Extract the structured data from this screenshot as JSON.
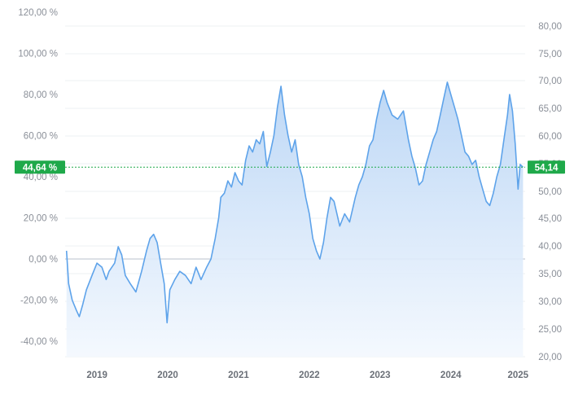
{
  "chart_data": {
    "type": "area",
    "title": "",
    "xlabel": "",
    "ylabel": "",
    "colors": {
      "line": "#5ea3ea",
      "fill_top": "#b9d5f5",
      "fill_bottom": "#f3f8fe",
      "badge": "#1fa94a",
      "zero_line": "#b8c2cc",
      "marker_line": "#1fa94a"
    },
    "grid": true,
    "left_axis": {
      "unit": "%",
      "ylim": [
        -47.5,
        120
      ],
      "ticks": [
        "120,00 %",
        "100,00 %",
        "80,00 %",
        "60,00 %",
        "40,00 %",
        "20,00 %",
        "0,00 %",
        "-20,00 %",
        "-40,00 %"
      ],
      "tick_values": [
        120,
        100,
        80,
        60,
        40,
        20,
        0,
        -20,
        -40
      ]
    },
    "right_axis": {
      "ylim": [
        19,
        82
      ],
      "ticks": [
        "80,00",
        "75,00",
        "70,00",
        "65,00",
        "60,00",
        "55,00",
        "50,00",
        "45,00",
        "40,00",
        "35,00",
        "30,00",
        "25,00",
        "20,00"
      ],
      "tick_values": [
        80,
        75,
        70,
        65,
        60,
        55,
        50,
        45,
        40,
        35,
        30,
        25,
        20
      ]
    },
    "x_axis": {
      "xlim": [
        2018.8,
        2025.3
      ],
      "ticks": [
        "2019",
        "2020",
        "2021",
        "2022",
        "2023",
        "2024",
        "2025"
      ],
      "tick_values": [
        2019.25,
        2020.25,
        2021.25,
        2022.25,
        2023.25,
        2024.25,
        2025.2
      ]
    },
    "current": {
      "percent_label": "44,64 %",
      "price_label": "54,14",
      "percent": 44.64,
      "price": 54.14
    },
    "series": [
      {
        "points": [
          [
            2018.82,
            4
          ],
          [
            2018.85,
            -12
          ],
          [
            2018.9,
            -20
          ],
          [
            2018.96,
            -25
          ],
          [
            2019.0,
            -28
          ],
          [
            2019.05,
            -22
          ],
          [
            2019.1,
            -15
          ],
          [
            2019.18,
            -8
          ],
          [
            2019.25,
            -2
          ],
          [
            2019.32,
            -4
          ],
          [
            2019.38,
            -10
          ],
          [
            2019.42,
            -6
          ],
          [
            2019.5,
            -2
          ],
          [
            2019.55,
            6
          ],
          [
            2019.6,
            2
          ],
          [
            2019.65,
            -8
          ],
          [
            2019.72,
            -12
          ],
          [
            2019.8,
            -16
          ],
          [
            2019.88,
            -6
          ],
          [
            2019.95,
            4
          ],
          [
            2020.0,
            10
          ],
          [
            2020.05,
            12
          ],
          [
            2020.1,
            8
          ],
          [
            2020.15,
            -2
          ],
          [
            2020.2,
            -12
          ],
          [
            2020.24,
            -31
          ],
          [
            2020.28,
            -15
          ],
          [
            2020.35,
            -10
          ],
          [
            2020.42,
            -6
          ],
          [
            2020.5,
            -8
          ],
          [
            2020.58,
            -12
          ],
          [
            2020.65,
            -4
          ],
          [
            2020.72,
            -10
          ],
          [
            2020.8,
            -4
          ],
          [
            2020.86,
            0
          ],
          [
            2020.92,
            10
          ],
          [
            2020.97,
            20
          ],
          [
            2021.0,
            30
          ],
          [
            2021.05,
            32
          ],
          [
            2021.1,
            38
          ],
          [
            2021.15,
            35
          ],
          [
            2021.2,
            42
          ],
          [
            2021.25,
            38
          ],
          [
            2021.3,
            36
          ],
          [
            2021.35,
            48
          ],
          [
            2021.4,
            55
          ],
          [
            2021.45,
            52
          ],
          [
            2021.5,
            58
          ],
          [
            2021.55,
            56
          ],
          [
            2021.6,
            62
          ],
          [
            2021.65,
            45
          ],
          [
            2021.7,
            52
          ],
          [
            2021.75,
            60
          ],
          [
            2021.8,
            74
          ],
          [
            2021.85,
            84
          ],
          [
            2021.9,
            70
          ],
          [
            2021.95,
            60
          ],
          [
            2022.0,
            52
          ],
          [
            2022.05,
            58
          ],
          [
            2022.1,
            46
          ],
          [
            2022.15,
            40
          ],
          [
            2022.2,
            30
          ],
          [
            2022.25,
            22
          ],
          [
            2022.3,
            10
          ],
          [
            2022.35,
            4
          ],
          [
            2022.4,
            0
          ],
          [
            2022.45,
            8
          ],
          [
            2022.5,
            20
          ],
          [
            2022.55,
            30
          ],
          [
            2022.6,
            28
          ],
          [
            2022.68,
            16
          ],
          [
            2022.75,
            22
          ],
          [
            2022.82,
            18
          ],
          [
            2022.9,
            30
          ],
          [
            2022.95,
            36
          ],
          [
            2023.0,
            40
          ],
          [
            2023.05,
            46
          ],
          [
            2023.1,
            55
          ],
          [
            2023.15,
            58
          ],
          [
            2023.2,
            68
          ],
          [
            2023.25,
            76
          ],
          [
            2023.3,
            82
          ],
          [
            2023.35,
            76
          ],
          [
            2023.42,
            70
          ],
          [
            2023.5,
            68
          ],
          [
            2023.58,
            72
          ],
          [
            2023.65,
            58
          ],
          [
            2023.7,
            50
          ],
          [
            2023.75,
            44
          ],
          [
            2023.8,
            36
          ],
          [
            2023.85,
            38
          ],
          [
            2023.9,
            46
          ],
          [
            2023.95,
            52
          ],
          [
            2024.0,
            58
          ],
          [
            2024.05,
            62
          ],
          [
            2024.1,
            70
          ],
          [
            2024.15,
            78
          ],
          [
            2024.2,
            86
          ],
          [
            2024.25,
            80
          ],
          [
            2024.3,
            74
          ],
          [
            2024.35,
            68
          ],
          [
            2024.4,
            60
          ],
          [
            2024.45,
            52
          ],
          [
            2024.5,
            50
          ],
          [
            2024.55,
            46
          ],
          [
            2024.6,
            48
          ],
          [
            2024.65,
            40
          ],
          [
            2024.7,
            34
          ],
          [
            2024.75,
            28
          ],
          [
            2024.8,
            26
          ],
          [
            2024.85,
            32
          ],
          [
            2024.9,
            40
          ],
          [
            2024.95,
            46
          ],
          [
            2025.0,
            58
          ],
          [
            2025.05,
            70
          ],
          [
            2025.08,
            80
          ],
          [
            2025.12,
            72
          ],
          [
            2025.16,
            56
          ],
          [
            2025.2,
            34
          ],
          [
            2025.23,
            46
          ],
          [
            2025.27,
            44.64
          ]
        ]
      }
    ]
  }
}
